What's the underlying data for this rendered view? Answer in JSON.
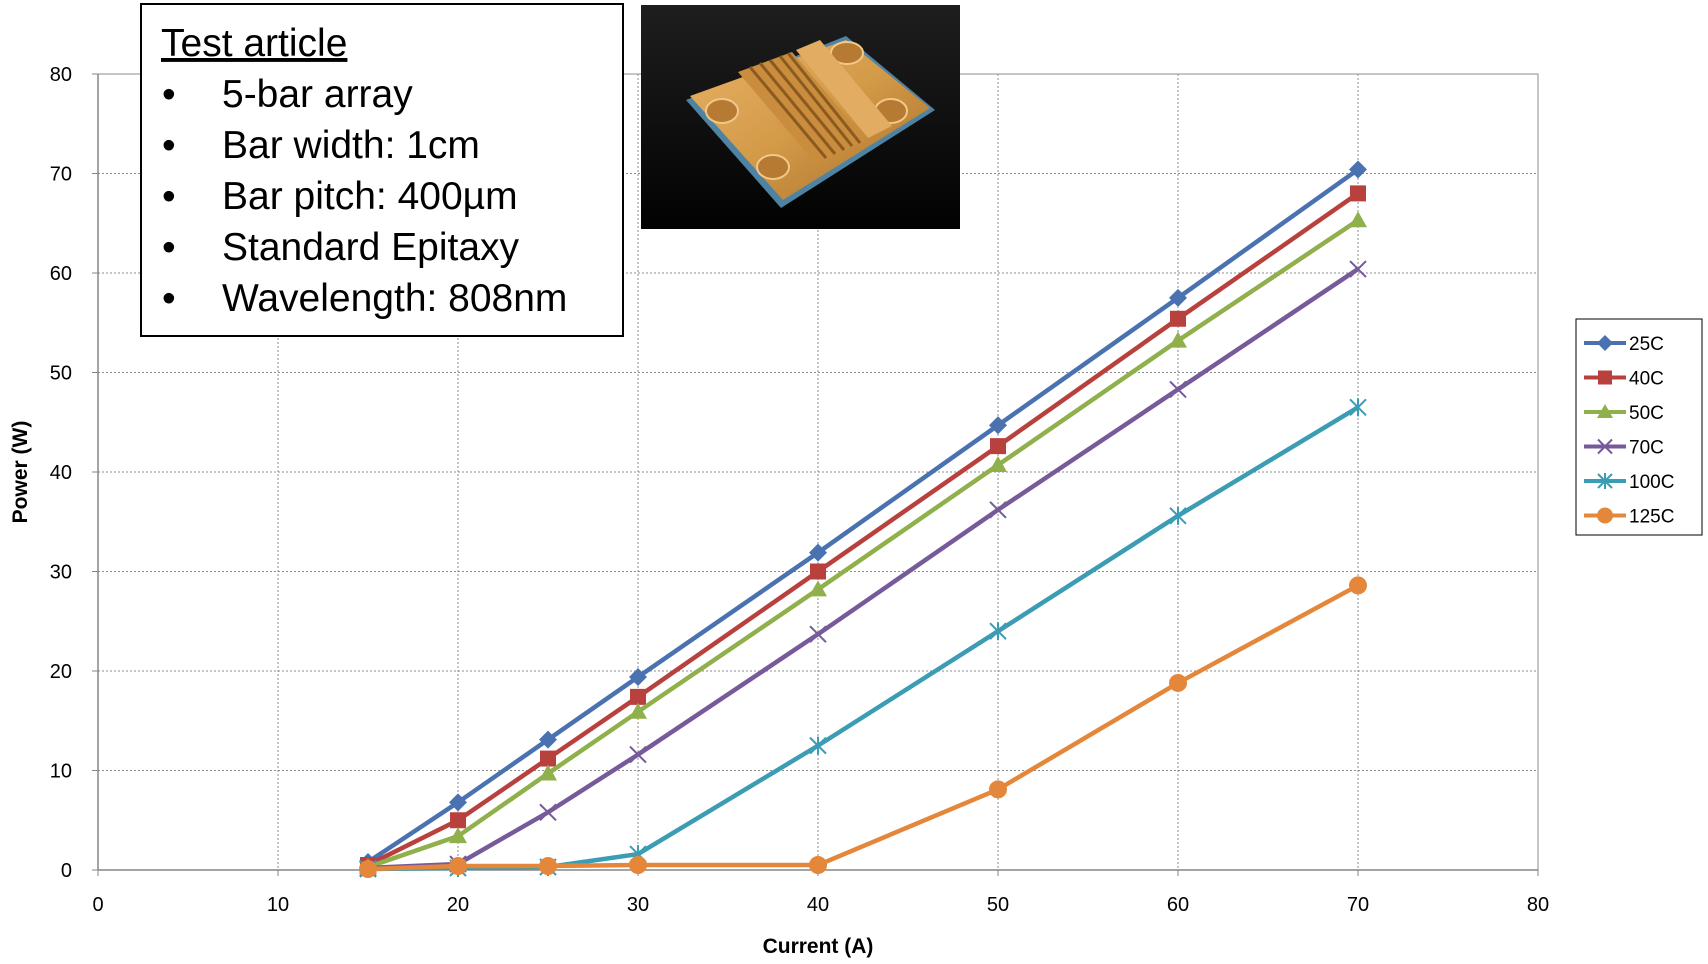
{
  "chart_data": {
    "type": "line",
    "title": "",
    "xlabel": "Current (A)",
    "ylabel": "Power (W)",
    "xlim": [
      0,
      80
    ],
    "ylim": [
      0,
      80
    ],
    "xticks": [
      0,
      10,
      20,
      30,
      40,
      50,
      60,
      70,
      80
    ],
    "yticks": [
      0,
      10,
      20,
      30,
      40,
      50,
      60,
      70,
      80
    ],
    "grid": true,
    "legend_position": "right",
    "x": [
      15,
      20,
      25,
      30,
      40,
      50,
      60,
      70
    ],
    "series": [
      {
        "name": "25C",
        "color": "#4a72b0",
        "marker": "diamond",
        "values": [
          0.8,
          6.8,
          13.1,
          19.4,
          31.9,
          44.7,
          57.5,
          70.4
        ]
      },
      {
        "name": "40C",
        "color": "#b8413e",
        "marker": "square",
        "values": [
          0.5,
          5.0,
          11.2,
          17.4,
          30.0,
          42.6,
          55.4,
          68.0
        ]
      },
      {
        "name": "50C",
        "color": "#8fb04a",
        "marker": "triangle",
        "values": [
          0.3,
          3.4,
          9.7,
          15.9,
          28.2,
          40.7,
          53.2,
          65.3
        ]
      },
      {
        "name": "70C",
        "color": "#765a9a",
        "marker": "x",
        "values": [
          0.2,
          0.6,
          5.8,
          11.6,
          23.7,
          36.2,
          48.3,
          60.4
        ]
      },
      {
        "name": "100C",
        "color": "#3b9cb3",
        "marker": "star",
        "values": [
          0.1,
          0.2,
          0.3,
          1.6,
          12.5,
          24.0,
          35.6,
          46.5
        ]
      },
      {
        "name": "125C",
        "color": "#e4873a",
        "marker": "circle",
        "values": [
          0.1,
          0.4,
          0.4,
          0.5,
          0.5,
          8.1,
          18.8,
          28.6
        ]
      }
    ]
  },
  "annotation": {
    "title": "Test article",
    "items": [
      "5-bar array",
      "Bar width:  1cm",
      "Bar pitch:  400µm",
      "Standard Epitaxy",
      "Wavelength: 808nm"
    ],
    "bullet": "•"
  },
  "photo": {
    "description_icon": "laser-bar-array-photo"
  }
}
